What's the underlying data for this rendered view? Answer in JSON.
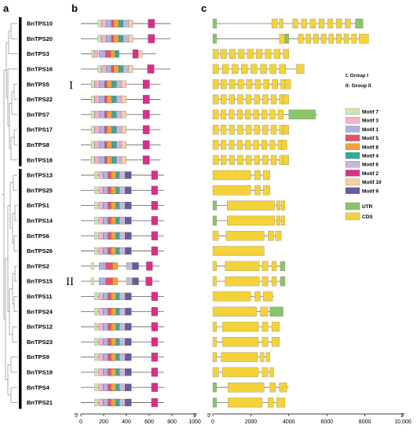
{
  "panels": [
    "a",
    "b",
    "c"
  ],
  "genes": [
    "BnTPS10",
    "BnTPS20",
    "BnTPS3",
    "BnTPS16",
    "BnTPS5",
    "BnTPS22",
    "BnTPS7",
    "BnTPS17",
    "BnTPS8",
    "BnTPS18",
    "BnTPS13",
    "BnTPS25",
    "BnTPS1",
    "BnTPS14",
    "BnTPS6",
    "BnTPS26",
    "BnTPS2",
    "BnTPS15",
    "BnTPS11",
    "BnTPS24",
    "BnTPS12",
    "BnTPS23",
    "BnTPS9",
    "BnTPS19",
    "BnTPS4",
    "BnTPS21"
  ],
  "groups": [
    {
      "numeral": "I",
      "start": 0,
      "end": 9
    },
    {
      "numeral": "II",
      "start": 10,
      "end": 25
    }
  ],
  "group_legend": [
    "I: Group I",
    "II: Group II"
  ],
  "motif_axis": {
    "start_label": "5'",
    "end_label": "3'",
    "ticks": [
      0,
      200,
      400,
      600,
      800,
      1000
    ],
    "max": 1000
  },
  "gene_axis": {
    "start_label": "5'",
    "end_label": "3'",
    "ticks": [
      "0",
      "2000",
      "4000",
      "6000",
      "8000",
      "10,000"
    ],
    "tick_values": [
      0,
      2000,
      4000,
      6000,
      8000,
      10000
    ],
    "max": 10000
  },
  "motif_legend": [
    {
      "label": "Motif 7",
      "color": "#cfe8b0"
    },
    {
      "label": "Motif 3",
      "color": "#f2b2c8"
    },
    {
      "label": "Motif 1",
      "color": "#a9b2e0"
    },
    {
      "label": "Motif 5",
      "color": "#e8506a"
    },
    {
      "label": "Motif 8",
      "color": "#f2a13c"
    },
    {
      "label": "Motif 4",
      "color": "#36a89a"
    },
    {
      "label": "Motif 6",
      "color": "#c8b8d8"
    },
    {
      "label": "Motif 2",
      "color": "#d8308a"
    },
    {
      "label": "Motif 10",
      "color": "#f6d2a0"
    },
    {
      "label": "Motif 9",
      "color": "#6a5a98"
    }
  ],
  "structure_legend": [
    {
      "label": "UTR",
      "color": "#8cc46a"
    },
    {
      "label": "CDS",
      "color": "#f4d23a"
    }
  ]
}
